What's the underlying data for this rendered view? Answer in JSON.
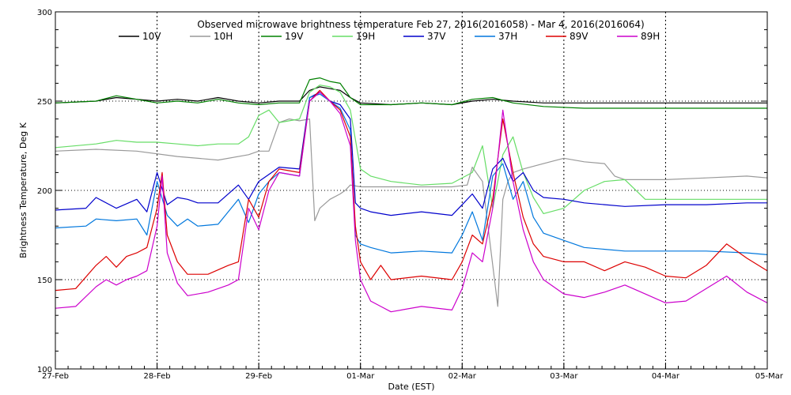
{
  "chart_data": {
    "type": "line",
    "title": "Observed microwave brightness temperature Feb 27, 2016(2016058) - Mar  4, 2016(2016064)",
    "xlabel": "Date (EST)",
    "ylabel": "Brightness Temperature, Deg K",
    "xlim": [
      0,
      7
    ],
    "ylim": [
      100,
      300
    ],
    "grid": "dotted at y ticks and day boundaries",
    "legend": "top",
    "x_tick_labels": [
      "27-Feb",
      "28-Feb",
      "29-Feb",
      "01-Mar",
      "02-Mar",
      "03-Mar",
      "04-Mar",
      "05-Mar"
    ],
    "x_tick_values": [
      0,
      1,
      2,
      3,
      4,
      5,
      6,
      7
    ],
    "y_tick_labels": [
      "100",
      "150",
      "200",
      "250",
      "300"
    ],
    "y_tick_values": [
      100,
      150,
      200,
      250,
      300
    ],
    "series": [
      {
        "name": "10V",
        "color": "#000000",
        "x": [
          0,
          0.4,
          0.6,
          0.8,
          1.0,
          1.2,
          1.4,
          1.6,
          1.8,
          2.0,
          2.2,
          2.4,
          2.5,
          2.6,
          2.7,
          2.8,
          2.9,
          3.0,
          3.3,
          3.6,
          3.9,
          4.1,
          4.3,
          4.5,
          4.8,
          5.2,
          5.6,
          6.0,
          6.4,
          6.8,
          7.0
        ],
        "values": [
          249,
          250,
          252,
          251,
          250,
          251,
          250,
          252,
          250,
          249,
          250,
          250,
          256,
          258,
          257,
          256,
          252,
          249,
          248,
          249,
          248,
          250,
          251,
          250,
          249,
          249,
          249,
          249,
          249,
          249,
          249
        ]
      },
      {
        "name": "10H",
        "color": "#999999",
        "x": [
          0,
          0.4,
          0.8,
          1.2,
          1.6,
          1.9,
          2.0,
          2.1,
          2.2,
          2.3,
          2.4,
          2.5,
          2.55,
          2.6,
          2.7,
          2.8,
          2.85,
          2.9,
          3.0,
          3.3,
          3.6,
          3.9,
          4.05,
          4.1,
          4.2,
          4.35,
          4.4,
          4.45,
          4.5,
          4.6,
          4.8,
          5.0,
          5.2,
          5.4,
          5.5,
          5.6,
          6.0,
          6.4,
          6.8,
          7.0
        ],
        "values": [
          222,
          223,
          222,
          219,
          217,
          220,
          222,
          222,
          238,
          240,
          239,
          240,
          183,
          190,
          195,
          198,
          200,
          203,
          202,
          202,
          202,
          202,
          203,
          213,
          205,
          135,
          195,
          205,
          210,
          212,
          215,
          218,
          216,
          215,
          208,
          206,
          206,
          207,
          208,
          207
        ]
      },
      {
        "name": "19V",
        "color": "#008000",
        "x": [
          0,
          0.4,
          0.6,
          0.8,
          1.0,
          1.2,
          1.4,
          1.6,
          1.8,
          2.0,
          2.2,
          2.4,
          2.5,
          2.6,
          2.7,
          2.8,
          2.9,
          3.0,
          3.3,
          3.6,
          3.9,
          4.1,
          4.3,
          4.5,
          4.8,
          5.2,
          5.6,
          6.0,
          6.4,
          6.8,
          7.0
        ],
        "values": [
          249,
          250,
          253,
          251,
          249,
          250,
          249,
          251,
          249,
          248,
          249,
          249,
          262,
          263,
          261,
          260,
          252,
          248,
          248,
          249,
          248,
          251,
          252,
          249,
          247,
          246,
          246,
          246,
          246,
          246,
          246
        ]
      },
      {
        "name": "19H",
        "color": "#66dd66",
        "x": [
          0,
          0.4,
          0.6,
          0.8,
          1.0,
          1.2,
          1.4,
          1.6,
          1.8,
          1.9,
          2.0,
          2.1,
          2.2,
          2.4,
          2.5,
          2.6,
          2.7,
          2.8,
          2.9,
          3.0,
          3.1,
          3.3,
          3.6,
          3.9,
          4.1,
          4.2,
          4.3,
          4.4,
          4.5,
          4.6,
          4.7,
          4.8,
          5.0,
          5.2,
          5.4,
          5.6,
          5.8,
          6.0,
          6.4,
          6.8,
          7.0
        ],
        "values": [
          224,
          226,
          228,
          227,
          227,
          226,
          225,
          226,
          226,
          230,
          242,
          245,
          238,
          240,
          255,
          259,
          258,
          255,
          245,
          212,
          208,
          205,
          203,
          204,
          210,
          225,
          190,
          220,
          230,
          210,
          196,
          187,
          190,
          200,
          205,
          206,
          195,
          195,
          195,
          195,
          195
        ]
      },
      {
        "name": "37V",
        "color": "#0000cc",
        "x": [
          0,
          0.3,
          0.4,
          0.6,
          0.8,
          0.9,
          1.0,
          1.1,
          1.2,
          1.3,
          1.4,
          1.6,
          1.8,
          1.9,
          2.0,
          2.1,
          2.2,
          2.4,
          2.5,
          2.6,
          2.7,
          2.8,
          2.9,
          2.95,
          3.0,
          3.1,
          3.3,
          3.6,
          3.9,
          4.0,
          4.1,
          4.2,
          4.3,
          4.4,
          4.5,
          4.6,
          4.7,
          4.8,
          5.0,
          5.2,
          5.6,
          6.0,
          6.4,
          6.8,
          7.0
        ],
        "values": [
          189,
          190,
          196,
          190,
          195,
          188,
          210,
          192,
          196,
          195,
          193,
          193,
          203,
          195,
          205,
          209,
          213,
          212,
          252,
          255,
          250,
          248,
          240,
          193,
          190,
          188,
          186,
          188,
          186,
          192,
          198,
          190,
          212,
          218,
          205,
          210,
          200,
          196,
          195,
          193,
          191,
          192,
          192,
          193,
          193
        ]
      },
      {
        "name": "37H",
        "color": "#0077dd",
        "x": [
          0,
          0.3,
          0.4,
          0.6,
          0.8,
          0.9,
          1.0,
          1.1,
          1.2,
          1.3,
          1.4,
          1.6,
          1.8,
          1.9,
          2.0,
          2.1,
          2.2,
          2.4,
          2.5,
          2.6,
          2.7,
          2.8,
          2.9,
          2.95,
          3.0,
          3.1,
          3.3,
          3.6,
          3.9,
          4.0,
          4.1,
          4.2,
          4.3,
          4.4,
          4.5,
          4.6,
          4.7,
          4.8,
          5.0,
          5.2,
          5.6,
          6.0,
          6.4,
          6.8,
          7.0
        ],
        "values": [
          179,
          180,
          184,
          183,
          184,
          175,
          205,
          186,
          180,
          184,
          180,
          181,
          195,
          182,
          198,
          205,
          210,
          208,
          252,
          254,
          250,
          246,
          234,
          175,
          170,
          168,
          165,
          166,
          165,
          175,
          188,
          172,
          208,
          215,
          195,
          205,
          185,
          176,
          172,
          168,
          166,
          166,
          166,
          165,
          164
        ]
      },
      {
        "name": "89V",
        "color": "#dd0000",
        "x": [
          0,
          0.2,
          0.4,
          0.5,
          0.6,
          0.7,
          0.8,
          0.9,
          1.0,
          1.05,
          1.1,
          1.2,
          1.3,
          1.5,
          1.7,
          1.8,
          1.9,
          2.0,
          2.1,
          2.2,
          2.4,
          2.5,
          2.6,
          2.7,
          2.8,
          2.9,
          2.95,
          3.0,
          3.1,
          3.2,
          3.3,
          3.6,
          3.9,
          4.0,
          4.1,
          4.2,
          4.3,
          4.4,
          4.5,
          4.6,
          4.7,
          4.8,
          5.0,
          5.2,
          5.4,
          5.6,
          5.8,
          6.0,
          6.2,
          6.4,
          6.6,
          6.8,
          7.0
        ],
        "values": [
          144,
          145,
          158,
          163,
          157,
          163,
          165,
          168,
          190,
          210,
          175,
          160,
          153,
          153,
          158,
          160,
          195,
          185,
          205,
          212,
          210,
          250,
          256,
          250,
          245,
          230,
          180,
          160,
          150,
          158,
          150,
          152,
          150,
          160,
          175,
          170,
          195,
          240,
          210,
          185,
          170,
          163,
          160,
          160,
          155,
          160,
          157,
          152,
          151,
          158,
          170,
          162,
          155
        ]
      },
      {
        "name": "89H",
        "color": "#cc00cc",
        "x": [
          0,
          0.2,
          0.4,
          0.5,
          0.6,
          0.7,
          0.8,
          0.9,
          1.0,
          1.05,
          1.1,
          1.2,
          1.3,
          1.5,
          1.7,
          1.8,
          1.9,
          2.0,
          2.1,
          2.2,
          2.4,
          2.5,
          2.6,
          2.7,
          2.8,
          2.9,
          2.95,
          3.0,
          3.1,
          3.2,
          3.3,
          3.6,
          3.9,
          4.0,
          4.1,
          4.2,
          4.3,
          4.4,
          4.5,
          4.6,
          4.7,
          4.8,
          5.0,
          5.2,
          5.4,
          5.6,
          5.8,
          6.0,
          6.2,
          6.4,
          6.6,
          6.8,
          7.0
        ],
        "values": [
          134,
          135,
          146,
          150,
          147,
          150,
          152,
          155,
          180,
          208,
          165,
          148,
          141,
          143,
          147,
          150,
          190,
          178,
          200,
          210,
          208,
          250,
          255,
          250,
          243,
          225,
          172,
          150,
          138,
          135,
          132,
          135,
          133,
          145,
          165,
          160,
          190,
          245,
          205,
          178,
          160,
          150,
          142,
          140,
          143,
          147,
          142,
          137,
          138,
          145,
          152,
          143,
          137
        ]
      }
    ]
  }
}
